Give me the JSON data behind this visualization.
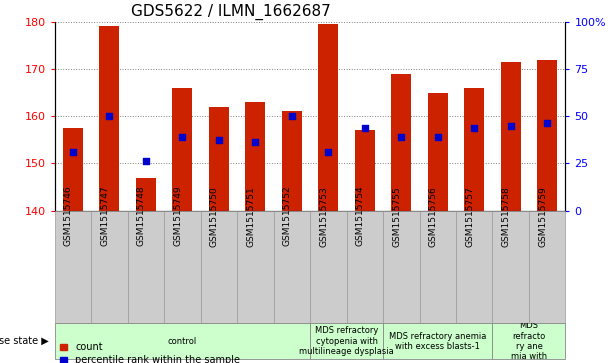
{
  "title": "GDS5622 / ILMN_1662687",
  "samples": [
    "GSM1515746",
    "GSM1515747",
    "GSM1515748",
    "GSM1515749",
    "GSM1515750",
    "GSM1515751",
    "GSM1515752",
    "GSM1515753",
    "GSM1515754",
    "GSM1515755",
    "GSM1515756",
    "GSM1515757",
    "GSM1515758",
    "GSM1515759"
  ],
  "counts": [
    157.5,
    179.0,
    147.0,
    166.0,
    162.0,
    163.0,
    161.0,
    179.5,
    157.0,
    169.0,
    165.0,
    166.0,
    171.5,
    172.0
  ],
  "percentile_ranks": [
    152.5,
    160.0,
    150.5,
    155.5,
    155.0,
    154.5,
    160.0,
    152.5,
    157.5,
    155.5,
    155.5,
    157.5,
    158.0,
    158.5
  ],
  "ylim_left": [
    140,
    180
  ],
  "ylim_right": [
    0,
    100
  ],
  "yticks_left": [
    140,
    150,
    160,
    170,
    180
  ],
  "yticks_right": [
    0,
    25,
    50,
    75,
    100
  ],
  "ytick_right_labels": [
    "0",
    "25",
    "50",
    "75",
    "100%"
  ],
  "bar_color": "#cc2200",
  "dot_color": "#0000cc",
  "bar_bottom": 140,
  "disease_groups": [
    {
      "label": "control",
      "start": 0,
      "end": 7
    },
    {
      "label": "MDS refractory\ncytopenia with\nmultilineage dysplasia",
      "start": 7,
      "end": 9
    },
    {
      "label": "MDS refractory anemia\nwith excess blasts-1",
      "start": 9,
      "end": 12
    },
    {
      "label": "MDS\nrefracto\nry ane\nmia with",
      "start": 12,
      "end": 14
    }
  ],
  "disease_group_color": "#ccffcc",
  "disease_group_border": "#888888",
  "sample_box_color": "#cccccc",
  "legend_count_label": "count",
  "legend_percentile_label": "percentile rank within the sample",
  "disease_state_label": "disease state",
  "title_fontsize": 11,
  "bar_width": 0.55,
  "n_samples": 14
}
